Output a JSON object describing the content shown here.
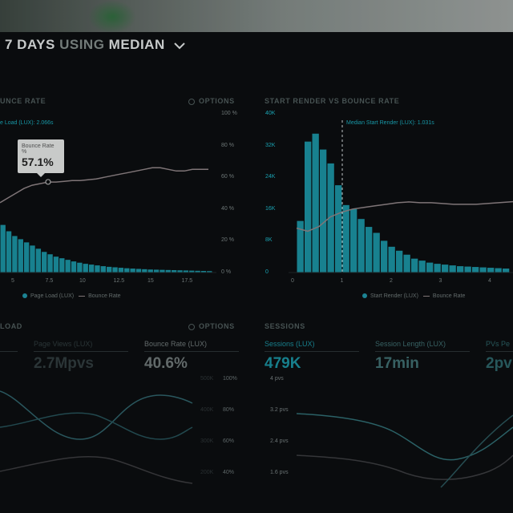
{
  "header": {
    "prefix": "7 DAYS",
    "mid": "USING",
    "suffix": "MEDIAN"
  },
  "left_panel": {
    "title": "UNCE RATE",
    "options_label": "OPTIONS",
    "series_label": "e Load (LUX): 2.066s",
    "tooltip_title": "Bounce Rate",
    "tooltip_sub": "%",
    "tooltip_value": "57.1%",
    "y_right_ticks": [
      "100 %",
      "80 %",
      "60 %",
      "40 %",
      "20 %",
      "0 %"
    ],
    "x_ticks": [
      "5",
      "7.5",
      "10",
      "12.5",
      "15",
      "17.5"
    ],
    "legend_bar": "Page Load (LUX)",
    "legend_line": "Bounce Rate"
  },
  "right_panel": {
    "title": "START RENDER VS BOUNCE RATE",
    "marker_label": "Median Start Render (LUX): 1.031s",
    "y_left_ticks": [
      "40K",
      "32K",
      "24K",
      "16K",
      "8K",
      "0"
    ],
    "x_ticks": [
      "0",
      "1",
      "2",
      "3",
      "4"
    ],
    "legend_bar": "Start Render (LUX)",
    "legend_line": "Bounce Rate"
  },
  "bottom_left": {
    "title": "LOAD",
    "options_label": "OPTIONS",
    "kpis": [
      {
        "label": "Page Views (LUX)",
        "value": "2.7Mpvs"
      },
      {
        "label": "Bounce Rate (LUX)",
        "value": "40.6%"
      }
    ],
    "y_mid_ticks": [
      "500K",
      "400K",
      "300K",
      "200K"
    ],
    "y_right_ticks": [
      "100%",
      "80%",
      "60%",
      "40%"
    ]
  },
  "bottom_right": {
    "title": "SESSIONS",
    "kpis": [
      {
        "label": "Sessions (LUX)",
        "value": "479K"
      },
      {
        "label": "Session Length (LUX)",
        "value": "17min"
      },
      {
        "label": "PVs Pe",
        "value": "2pv"
      }
    ],
    "y_ticks": [
      "4 pvs",
      "3.2 pvs",
      "2.4 pvs",
      "1.6 pvs"
    ]
  },
  "colors": {
    "teal": "#1b8c9c",
    "teal_text": "#1aa3b3",
    "line": "#8a7f82",
    "header": "#d8dcdc"
  },
  "chart_data": [
    {
      "type": "bar",
      "title": "Page Load vs Bounce Rate",
      "xlabel": "",
      "ylabel": "",
      "x_ticks": [
        5,
        7.5,
        10,
        12.5,
        15,
        17.5
      ],
      "series": [
        {
          "name": "Page Load (LUX)",
          "values": [
            30,
            26,
            23,
            21,
            19,
            17,
            15,
            13,
            11.5,
            10,
            9,
            8,
            7,
            6.2,
            5.5,
            5,
            4.5,
            4,
            3.6,
            3.3,
            3,
            2.7,
            2.5,
            2.3,
            2.1,
            1.9,
            1.8,
            1.7,
            1.6,
            1.5,
            1.4,
            1.3,
            1.2,
            1.1,
            1.0,
            0.9
          ]
        },
        {
          "name": "Bounce Rate",
          "values": [
            44,
            47,
            50,
            53,
            55,
            56,
            57,
            57,
            57.5,
            58,
            58,
            58.5,
            59,
            60,
            61,
            62,
            63,
            64,
            65,
            66,
            66,
            65,
            64,
            64,
            65,
            65,
            65
          ]
        }
      ],
      "y_right_ticks": [
        "0 %",
        "20 %",
        "40 %",
        "60 %",
        "80 %",
        "100 %"
      ]
    },
    {
      "type": "bar",
      "title": "START RENDER VS BOUNCE RATE",
      "xlabel": "",
      "ylabel": "",
      "x_ticks": [
        0,
        1,
        2,
        3,
        4
      ],
      "y_ticks": [
        0,
        8000,
        16000,
        24000,
        32000,
        40000
      ],
      "series": [
        {
          "name": "Start Render (LUX)",
          "values": [
            13000,
            33000,
            35000,
            31000,
            27500,
            22000,
            17000,
            16000,
            13500,
            11500,
            10000,
            8000,
            6500,
            5500,
            4500,
            3500,
            3000,
            2500,
            2200,
            2000,
            1800,
            1600,
            1500,
            1400,
            1300,
            1200,
            1100,
            1000
          ]
        },
        {
          "name": "Bounce Rate",
          "values": [
            28,
            26,
            29,
            35,
            38,
            40,
            41,
            42,
            43,
            44,
            44.5,
            44,
            44,
            43.5,
            43,
            43,
            43,
            43.5,
            44,
            44.5,
            45
          ]
        }
      ]
    }
  ]
}
